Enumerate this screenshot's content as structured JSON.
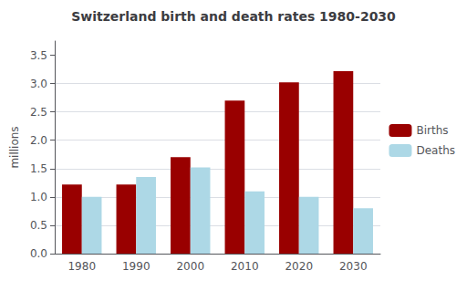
{
  "chart_data": {
    "type": "bar",
    "title": "Switzerland birth and death rates 1980-2030",
    "categories": [
      "1980",
      "1990",
      "2000",
      "2010",
      "2020",
      "2030"
    ],
    "series": [
      {
        "name": "Births",
        "color": "#990000",
        "values": [
          1.22,
          1.22,
          1.7,
          2.7,
          3.02,
          3.22
        ]
      },
      {
        "name": "Deaths",
        "color": "#add8e6",
        "values": [
          1.0,
          1.35,
          1.52,
          1.1,
          1.0,
          0.8
        ]
      }
    ],
    "ylabel": "millions",
    "ylim": [
      0,
      3.75
    ],
    "yticks": [
      {
        "value": 0,
        "label": "0.0"
      },
      0.5,
      {
        "value": 1,
        "label": "1.0"
      },
      1.5,
      {
        "value": 2,
        "label": "2.0"
      },
      2.5,
      {
        "value": 3,
        "label": "3.0"
      },
      3.5
    ],
    "grid": true,
    "legend": "right"
  }
}
